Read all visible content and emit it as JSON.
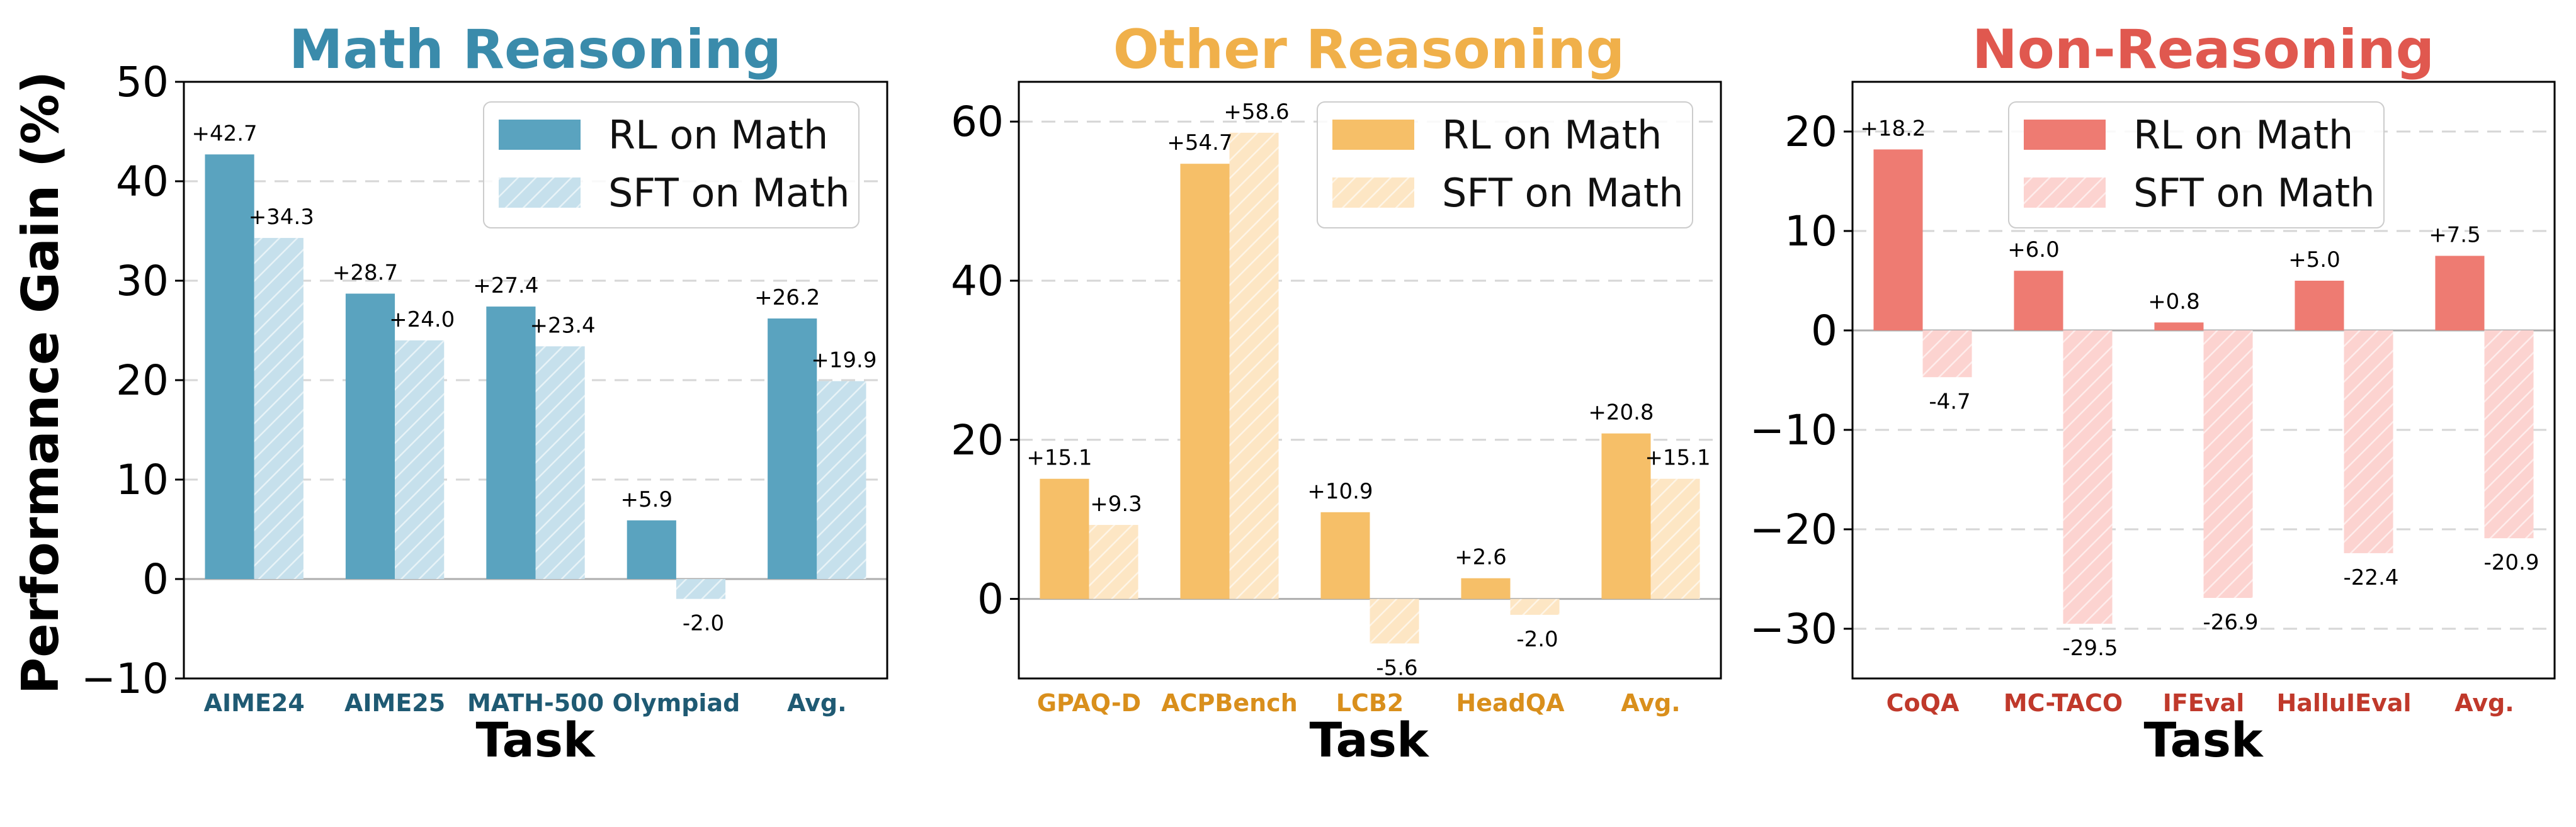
{
  "chart_data": [
    {
      "type": "bar",
      "title": "Math Reasoning",
      "title_color": "#3a8bab",
      "category_color": "#1f5a73",
      "xlabel": "Task",
      "ylabel": "Performance Gain (%)",
      "ylim": [
        -10,
        50
      ],
      "yticks": [
        -10,
        0,
        10,
        20,
        30,
        40,
        50
      ],
      "ytick_labels": [
        "−10",
        "0",
        "10",
        "20",
        "30",
        "40",
        "50"
      ],
      "grid": true,
      "legend_position": "top-right",
      "categories": [
        "AIME24",
        "AIME25",
        "MATH-500",
        "Olympiad",
        "Avg."
      ],
      "series": [
        {
          "name": "RL on Math",
          "color": "#5aa3bf",
          "hatch": false,
          "values": [
            42.7,
            28.7,
            27.4,
            5.9,
            26.2
          ],
          "labels": [
            "+42.7",
            "+28.7",
            "+27.4",
            "+5.9",
            "+26.2"
          ]
        },
        {
          "name": "SFT on Math",
          "color": "#c6e0ec",
          "hatch": true,
          "values": [
            34.3,
            24.0,
            23.4,
            -2.0,
            19.9
          ],
          "labels": [
            "+34.3",
            "+24.0",
            "+23.4",
            "-2.0",
            "+19.9"
          ]
        }
      ]
    },
    {
      "type": "bar",
      "title": "Other Reasoning",
      "title_color": "#f0b04a",
      "category_color": "#d98f1c",
      "xlabel": "Task",
      "ylabel": "",
      "ylim": [
        -10,
        65
      ],
      "yticks": [
        0,
        20,
        40,
        60
      ],
      "ytick_labels": [
        "0",
        "20",
        "40",
        "60"
      ],
      "grid": true,
      "legend_position": "top-right",
      "categories": [
        "GPAQ-D",
        "ACPBench",
        "LCB2",
        "HeadQA",
        "Avg."
      ],
      "series": [
        {
          "name": "RL on Math",
          "color": "#f6bf68",
          "hatch": false,
          "values": [
            15.1,
            54.7,
            10.9,
            2.6,
            20.8
          ],
          "labels": [
            "+15.1",
            "+54.7",
            "+10.9",
            "+2.6",
            "+20.8"
          ]
        },
        {
          "name": "SFT on Math",
          "color": "#fde6c4",
          "hatch": true,
          "values": [
            9.3,
            58.6,
            -5.6,
            -2.0,
            15.1
          ],
          "labels": [
            "+9.3",
            "+58.6",
            "-5.6",
            "-2.0",
            "+15.1"
          ]
        }
      ]
    },
    {
      "type": "bar",
      "title": "Non-Reasoning",
      "title_color": "#e0584f",
      "category_color": "#c0392b",
      "xlabel": "Task",
      "ylabel": "",
      "ylim": [
        -35,
        25
      ],
      "yticks": [
        -30,
        -20,
        -10,
        0,
        10,
        20
      ],
      "ytick_labels": [
        "−30",
        "−20",
        "−10",
        "0",
        "10",
        "20"
      ],
      "grid": true,
      "legend_position": "top-right",
      "categories": [
        "CoQA",
        "MC-TACO",
        "IFEval",
        "HalluIEval",
        "Avg."
      ],
      "series": [
        {
          "name": "RL on Math",
          "color": "#ee7b72",
          "hatch": false,
          "values": [
            18.2,
            6.0,
            0.8,
            5.0,
            7.5
          ],
          "labels": [
            "+18.2",
            "+6.0",
            "+0.8",
            "+5.0",
            "+7.5"
          ]
        },
        {
          "name": "SFT on Math",
          "color": "#fcd3d0",
          "hatch": true,
          "values": [
            -4.7,
            -29.5,
            -26.9,
            -22.4,
            -20.9
          ],
          "labels": [
            "-4.7",
            "-29.5",
            "-26.9",
            "-22.4",
            "-20.9"
          ]
        }
      ]
    }
  ]
}
